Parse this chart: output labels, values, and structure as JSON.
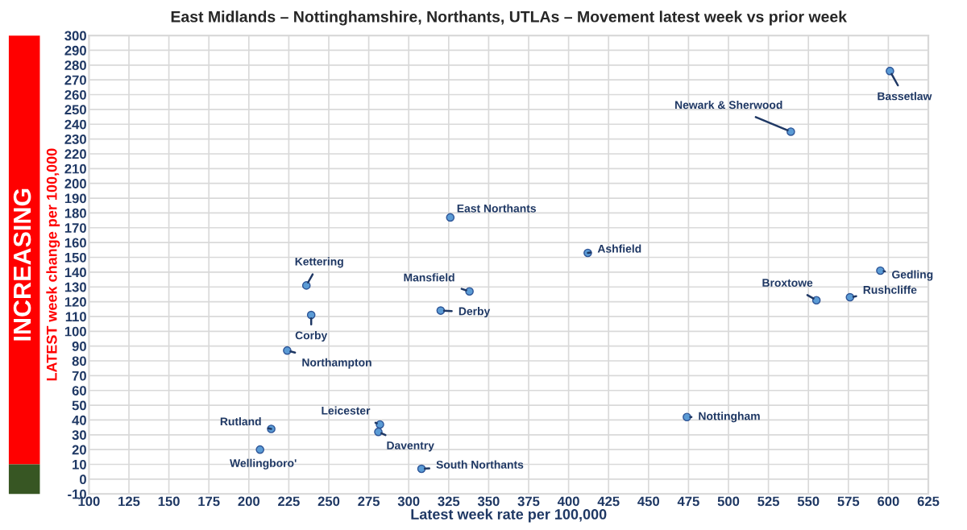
{
  "chart_data": {
    "type": "scatter",
    "title": "East Midlands – Nottinghamshire, Northants, UTLAs – Movement latest week vs prior week",
    "xlabel": "Latest week rate per 100,000",
    "ylabel": "LATEST week change per 100,000",
    "xlim": [
      100,
      625
    ],
    "xticks": [
      100,
      125,
      150,
      175,
      200,
      225,
      250,
      275,
      300,
      325,
      350,
      375,
      400,
      425,
      450,
      475,
      500,
      525,
      550,
      575,
      600,
      625
    ],
    "ylim": [
      -10,
      300
    ],
    "yticks": [
      -10,
      0,
      10,
      20,
      30,
      40,
      50,
      60,
      70,
      80,
      90,
      100,
      110,
      120,
      130,
      140,
      150,
      160,
      170,
      180,
      190,
      200,
      210,
      220,
      230,
      240,
      250,
      260,
      270,
      280,
      290,
      300
    ],
    "grid": true,
    "marker": "circle",
    "series": [
      {
        "color": "#5b9bd5",
        "x": [
          601,
          539,
          326,
          412,
          595,
          236,
          338,
          576,
          555,
          320,
          239,
          224,
          282,
          474,
          214,
          281,
          207,
          308
        ],
        "values": [
          276,
          235,
          177,
          153,
          141,
          131,
          127,
          123,
          121,
          114,
          111,
          87,
          37,
          42,
          34,
          32,
          20,
          7
        ]
      }
    ],
    "annotations": [
      "INCREASING",
      {
        "text": "Bassetlaw",
        "x": 601,
        "y": 276
      },
      {
        "text": "Newark & Sherwood",
        "x": 539,
        "y": 235
      },
      {
        "text": "East Northants",
        "x": 326,
        "y": 177
      },
      {
        "text": "Ashfield",
        "x": 412,
        "y": 153
      },
      {
        "text": "Gedling",
        "x": 595,
        "y": 141
      },
      {
        "text": "Kettering",
        "x": 236,
        "y": 131
      },
      {
        "text": "Mansfield",
        "x": 338,
        "y": 127
      },
      {
        "text": "Rushcliffe",
        "x": 576,
        "y": 123
      },
      {
        "text": "Broxtowe",
        "x": 555,
        "y": 121
      },
      {
        "text": "Derby",
        "x": 320,
        "y": 114
      },
      {
        "text": "Corby",
        "x": 239,
        "y": 111
      },
      {
        "text": "Northampton",
        "x": 224,
        "y": 87
      },
      {
        "text": "Leicester",
        "x": 282,
        "y": 37
      },
      {
        "text": "Nottingham",
        "x": 474,
        "y": 42
      },
      {
        "text": "Rutland",
        "x": 214,
        "y": 34
      },
      {
        "text": "Daventry",
        "x": 281,
        "y": 32
      },
      {
        "text": "Wellingboro'",
        "x": 207,
        "y": 20
      },
      {
        "text": "South Northants",
        "x": 308,
        "y": 7
      }
    ]
  }
}
